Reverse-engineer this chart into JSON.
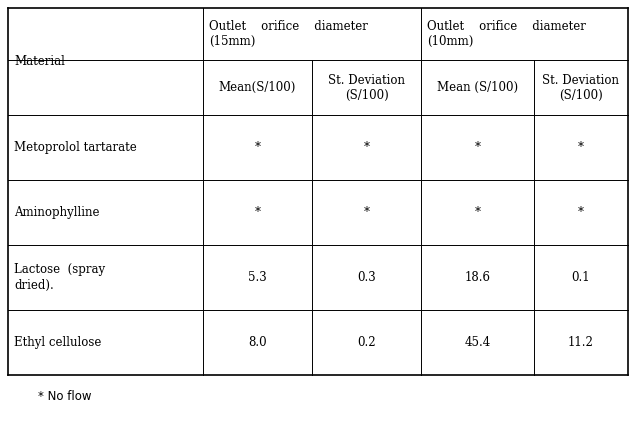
{
  "col_header_row1_material": "Material",
  "col_header_row1_15mm": "Outlet    orifice    diameter\n(15mm)",
  "col_header_row1_10mm": "Outlet    orifice    diameter\n(10mm)",
  "col_header_row2": [
    "Mean(S/100)",
    "St. Deviation\n(S/100)",
    "Mean (S/100)",
    "St. Deviation\n(S/100)"
  ],
  "rows": [
    [
      "Metoprolol tartarate",
      "*",
      "*",
      "*",
      "*"
    ],
    [
      "Aminophylline",
      "*",
      "*",
      "*",
      "*"
    ],
    [
      "Lactose  (spray\ndried).",
      "5.3",
      "0.3",
      "18.6",
      "0.1"
    ],
    [
      "Ethyl cellulose",
      "8.0",
      "0.2",
      "45.4",
      "11.2"
    ]
  ],
  "footnote": "* No flow",
  "background_color": "#ffffff",
  "line_color": "#000000",
  "header_fontsize": 8.5,
  "cell_fontsize": 8.5,
  "footnote_fontsize": 8.5
}
